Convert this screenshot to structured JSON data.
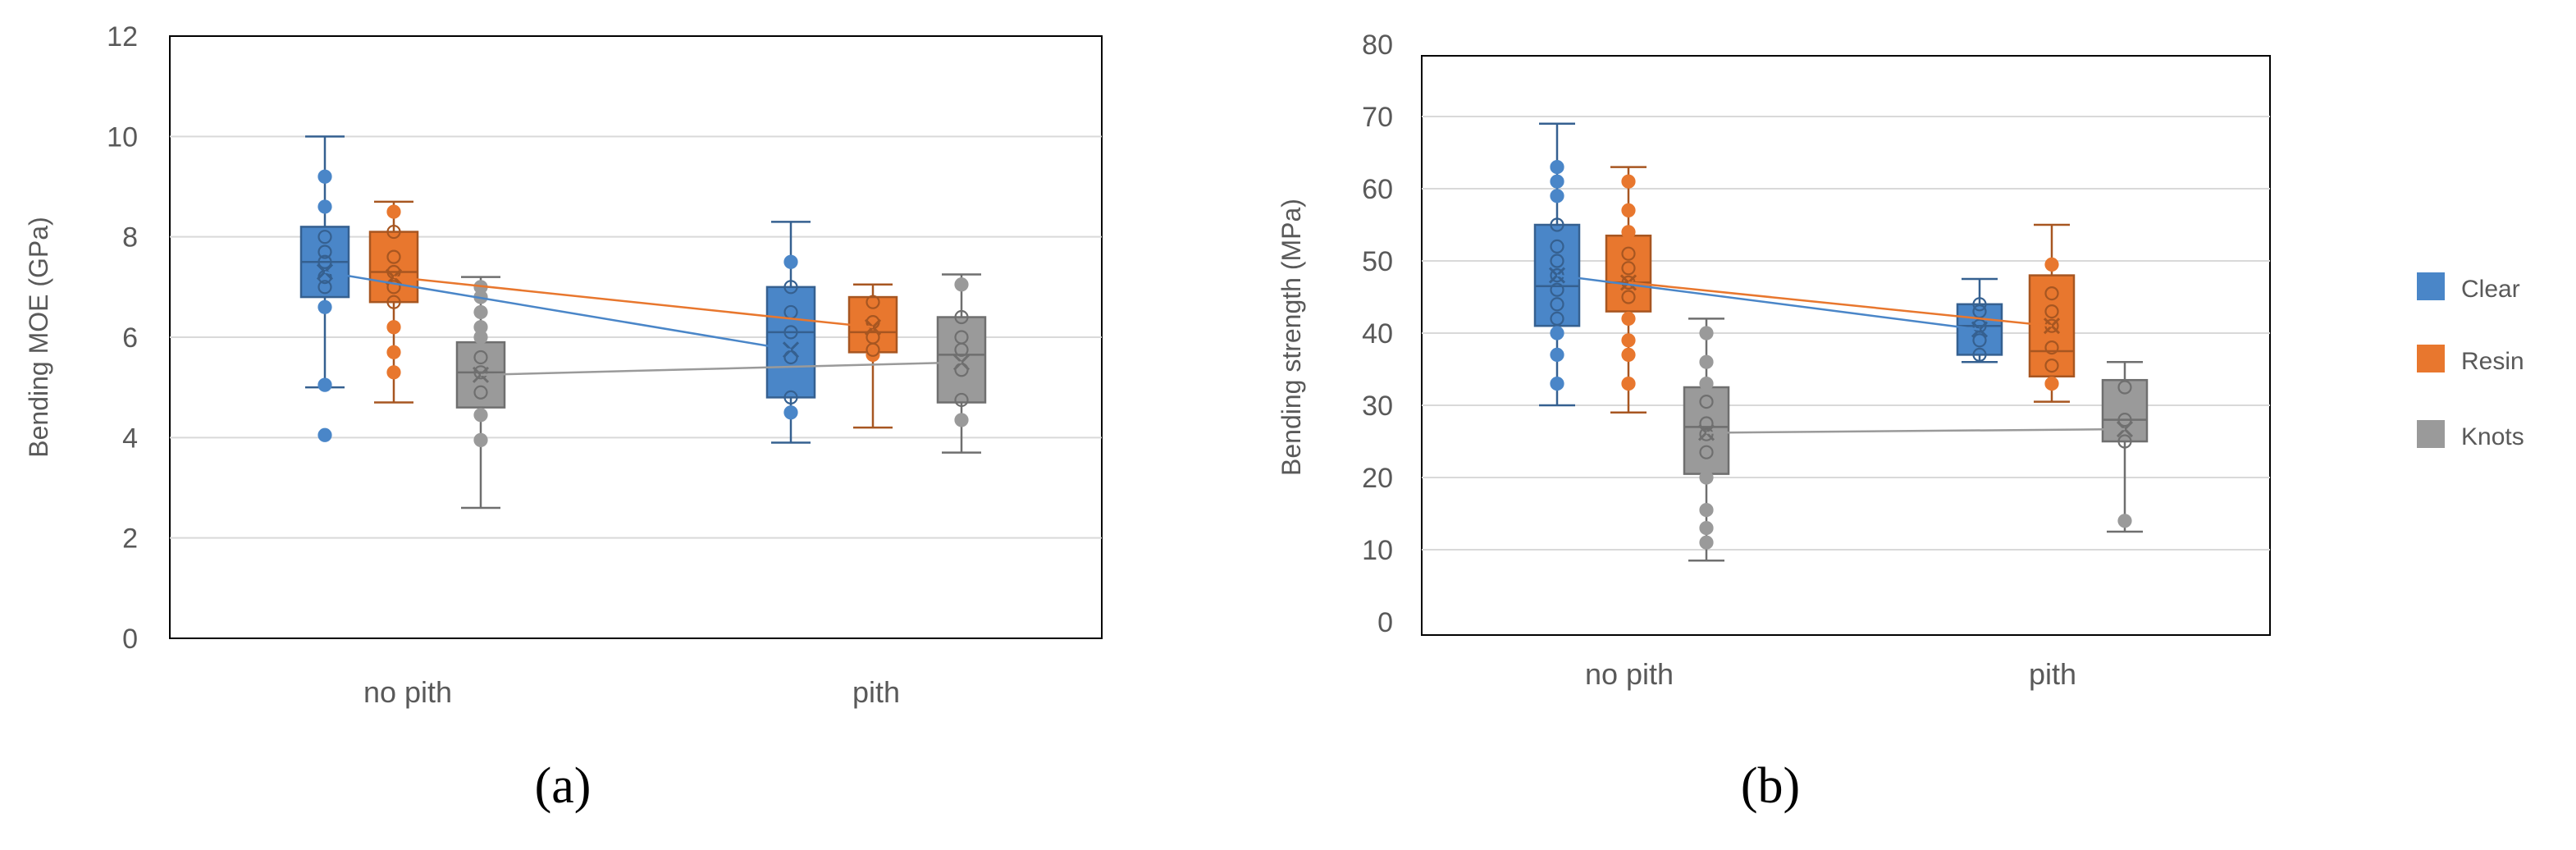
{
  "legend": [
    {
      "name": "Clear",
      "color": "#4a86c8"
    },
    {
      "name": "Resin",
      "color": "#e8772e"
    },
    {
      "name": "Knots",
      "color": "#9a9a9a"
    }
  ],
  "chart_data": [
    {
      "type": "box",
      "panel_label": "(a)",
      "title": "",
      "xlabel": "",
      "ylabel": "Bending MOE (GPa)",
      "ylim": [
        0,
        12
      ],
      "yticks": [
        "0",
        "2",
        "4",
        "6",
        "8",
        "10",
        "12"
      ],
      "categories": [
        "no pith",
        "pith"
      ],
      "series": [
        {
          "name": "Clear",
          "boxes": [
            {
              "min": 5.0,
              "q1": 6.8,
              "median": 7.5,
              "q3": 8.2,
              "max": 10.0,
              "mean": 7.3,
              "points": [
                4.05,
                5.05,
                6.6,
                7.0,
                7.2,
                7.5,
                7.7,
                8.0,
                8.6,
                9.2
              ]
            },
            {
              "min": 3.9,
              "q1": 4.8,
              "median": 6.1,
              "q3": 7.0,
              "max": 8.3,
              "mean": 5.75,
              "points": [
                4.5,
                4.8,
                5.6,
                6.1,
                6.5,
                7.0,
                7.5
              ]
            }
          ]
        },
        {
          "name": "Resin",
          "boxes": [
            {
              "min": 4.7,
              "q1": 6.7,
              "median": 7.3,
              "q3": 8.1,
              "max": 8.7,
              "mean": 7.2,
              "points": [
                5.3,
                5.7,
                6.2,
                6.7,
                7.0,
                7.3,
                7.6,
                8.1,
                8.5
              ]
            },
            {
              "min": 4.2,
              "q1": 5.7,
              "median": 6.1,
              "q3": 6.8,
              "max": 7.05,
              "mean": 6.2,
              "points": [
                5.65,
                5.75,
                6.0,
                6.3,
                6.7
              ]
            }
          ]
        },
        {
          "name": "Knots",
          "boxes": [
            {
              "min": 2.6,
              "q1": 4.6,
              "median": 5.3,
              "q3": 5.9,
              "max": 7.2,
              "mean": 5.25,
              "points": [
                3.95,
                4.45,
                4.9,
                5.3,
                5.6,
                6.0,
                6.2,
                6.5,
                6.8,
                7.0
              ]
            },
            {
              "min": 3.7,
              "q1": 4.7,
              "median": 5.65,
              "q3": 6.4,
              "max": 7.25,
              "mean": 5.5,
              "points": [
                4.35,
                4.75,
                5.35,
                5.75,
                6.0,
                6.4,
                7.05
              ]
            }
          ]
        }
      ]
    },
    {
      "type": "box",
      "panel_label": "(b)",
      "title": "",
      "xlabel": "",
      "ylabel": "Bending strength (MPa)",
      "ylim": [
        0,
        80
      ],
      "yticks": [
        "0",
        "10",
        "20",
        "30",
        "40",
        "50",
        "60",
        "70",
        "80"
      ],
      "categories": [
        "no pith",
        "pith"
      ],
      "series": [
        {
          "name": "Clear",
          "boxes": [
            {
              "min": 30,
              "q1": 41,
              "median": 46.5,
              "q3": 55,
              "max": 69,
              "mean": 48,
              "points": [
                33,
                37,
                40,
                42,
                44,
                46,
                48,
                50,
                52,
                55,
                59,
                61,
                63
              ]
            },
            {
              "min": 36,
              "q1": 37,
              "median": 41,
              "q3": 44,
              "max": 47.5,
              "mean": 40.5,
              "points": [
                37,
                39,
                41,
                43,
                44
              ]
            }
          ]
        },
        {
          "name": "Resin",
          "boxes": [
            {
              "min": 29,
              "q1": 43,
              "median": 47,
              "q3": 53.5,
              "max": 63,
              "mean": 47,
              "points": [
                33,
                37,
                39,
                42,
                45,
                47,
                49,
                51,
                54,
                57,
                61
              ]
            },
            {
              "min": 30.5,
              "q1": 34,
              "median": 37.5,
              "q3": 48,
              "max": 55,
              "mean": 41,
              "points": [
                33,
                35.5,
                38,
                41,
                43,
                45.5,
                49.5
              ]
            }
          ]
        },
        {
          "name": "Knots",
          "boxes": [
            {
              "min": 8.5,
              "q1": 20.5,
              "median": 27,
              "q3": 32.5,
              "max": 42,
              "mean": 26.2,
              "points": [
                11,
                13,
                15.5,
                20,
                23.5,
                26,
                27.5,
                30.5,
                33,
                36,
                40
              ]
            },
            {
              "min": 12.5,
              "q1": 25,
              "median": 28,
              "q3": 33.5,
              "max": 36,
              "mean": 26.7,
              "points": [
                14,
                25,
                28,
                32.5
              ]
            }
          ]
        }
      ]
    }
  ]
}
